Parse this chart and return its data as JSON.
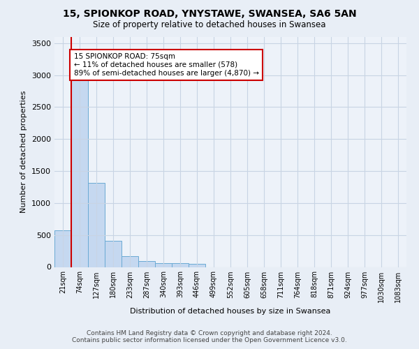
{
  "title": "15, SPIONKOP ROAD, YNYSTAWE, SWANSEA, SA6 5AN",
  "subtitle": "Size of property relative to detached houses in Swansea",
  "xlabel": "Distribution of detached houses by size in Swansea",
  "ylabel": "Number of detached properties",
  "bar_labels": [
    "21sqm",
    "74sqm",
    "127sqm",
    "180sqm",
    "233sqm",
    "287sqm",
    "340sqm",
    "393sqm",
    "446sqm",
    "499sqm",
    "552sqm",
    "605sqm",
    "658sqm",
    "711sqm",
    "764sqm",
    "818sqm",
    "871sqm",
    "924sqm",
    "977sqm",
    "1030sqm",
    "1083sqm"
  ],
  "bar_values": [
    570,
    2920,
    1320,
    410,
    170,
    90,
    60,
    55,
    50,
    0,
    0,
    0,
    0,
    0,
    0,
    0,
    0,
    0,
    0,
    0,
    0
  ],
  "bar_color": "#c5d8f0",
  "bar_edge_color": "#6aaad4",
  "vline_x": 0.5,
  "vline_color": "#cc0000",
  "ylim": [
    0,
    3600
  ],
  "yticks": [
    0,
    500,
    1000,
    1500,
    2000,
    2500,
    3000,
    3500
  ],
  "annotation_text": "15 SPIONKOP ROAD: 75sqm\n← 11% of detached houses are smaller (578)\n89% of semi-detached houses are larger (4,870) →",
  "annotation_box_color": "#cc0000",
  "footer_line1": "Contains HM Land Registry data © Crown copyright and database right 2024.",
  "footer_line2": "Contains public sector information licensed under the Open Government Licence v3.0.",
  "bg_color": "#e8eef6",
  "plot_bg_color": "#edf2f9"
}
